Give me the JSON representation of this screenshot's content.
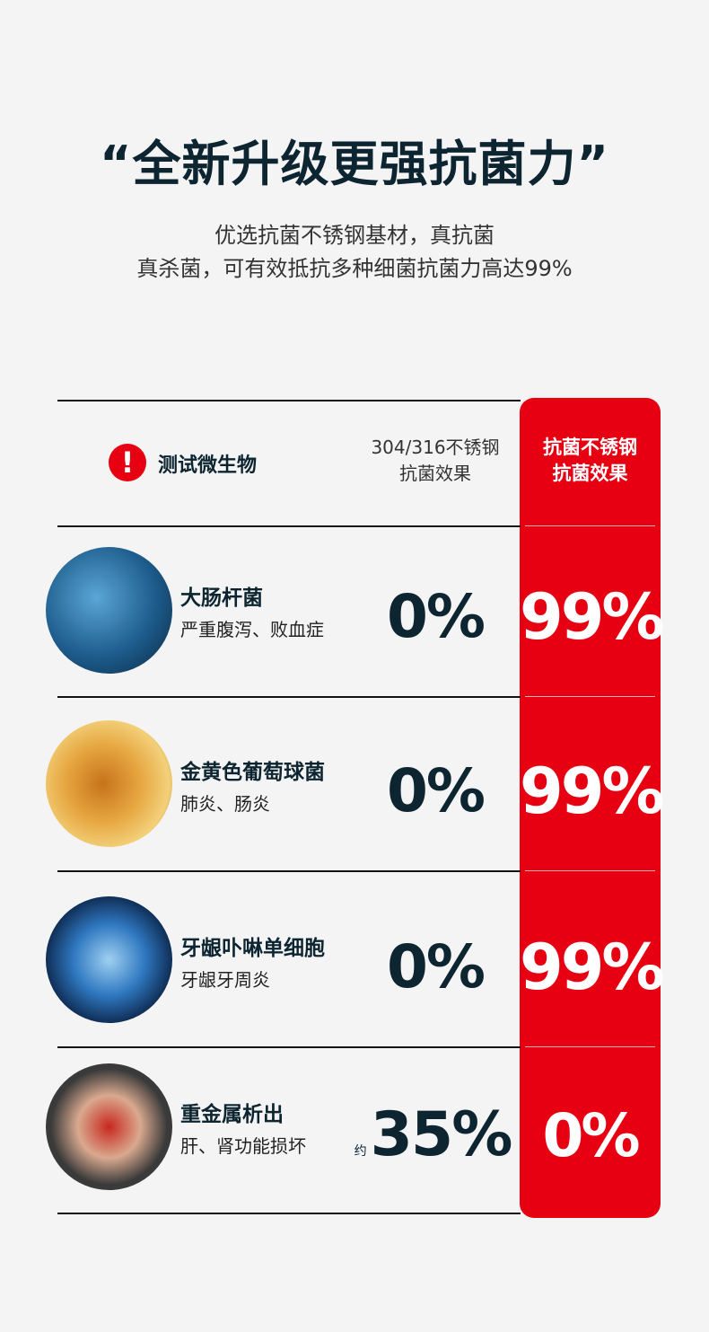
{
  "title": "“全新升级更强抗菌力”",
  "subtitle": [
    "优选抗菌不锈钢基材，真抗菌",
    "真杀菌，可有效抵抗多种细菌抗菌力高达99%"
  ],
  "header": {
    "microbe_label": "测试微生物",
    "plain_line1": "304/316不锈钢",
    "plain_line2": "抗菌效果",
    "red_line1": "抗菌不锈钢",
    "red_line2": "抗菌效果",
    "warning_icon": "exclamation-icon"
  },
  "colors": {
    "accent": "#e60012",
    "text": "#0d2431"
  },
  "rows": [
    {
      "name": "大肠杆菌",
      "desc": "严重腹泻、败血症",
      "plain": "0%",
      "red": "99%"
    },
    {
      "name": "金黄色葡萄球菌",
      "desc": "肺炎、肠炎",
      "plain": "0%",
      "red": "99%"
    },
    {
      "name": "牙龈卟啉单细胞",
      "desc": "牙龈牙周炎",
      "plain": "0%",
      "red": "99%"
    },
    {
      "name": "重金属析出",
      "desc": "肝、肾功能损坏",
      "approx": "约",
      "plain": "35%",
      "red": "0%"
    }
  ]
}
